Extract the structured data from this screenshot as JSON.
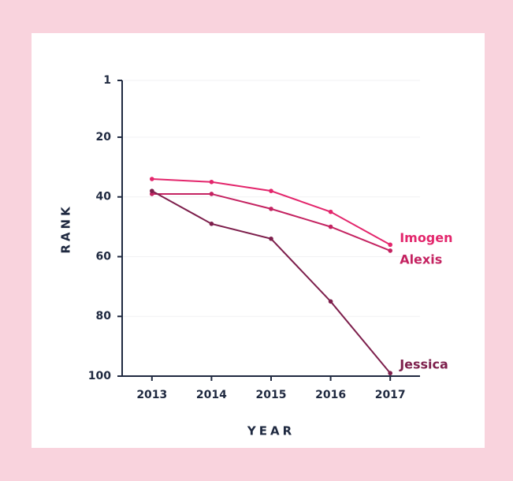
{
  "chart_data": {
    "type": "line",
    "x": [
      2013,
      2014,
      2015,
      2016,
      2017
    ],
    "xlim": [
      2012.5,
      2017.5
    ],
    "xticks": [
      2013,
      2014,
      2015,
      2016,
      2017
    ],
    "ylim": [
      1,
      100
    ],
    "yticks": [
      1,
      20,
      40,
      60,
      80,
      100
    ],
    "y_inverted": true,
    "grid": true,
    "x_label": "YEAR",
    "y_label": "RANK",
    "series": [
      {
        "name": "Imogen",
        "color": "#e3266c",
        "values": [
          34,
          35,
          38,
          45,
          56
        ]
      },
      {
        "name": "Alexis",
        "color": "#c42361",
        "values": [
          39,
          39,
          44,
          50,
          58
        ]
      },
      {
        "name": "Jessica",
        "color": "#7d1f4c",
        "values": [
          38,
          49,
          54,
          75,
          99
        ]
      }
    ]
  }
}
